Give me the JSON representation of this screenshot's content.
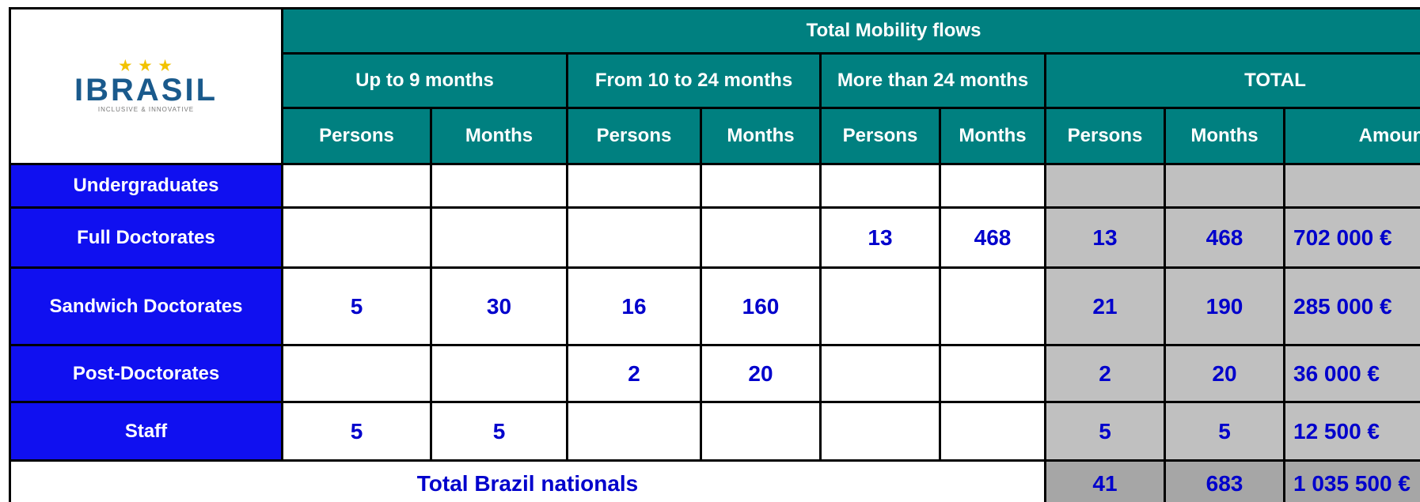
{
  "logo": {
    "brand": "IBRASIL",
    "tagline": "INCLUSIVE & INNOVATIVE"
  },
  "table": {
    "title": "Total Mobility flows",
    "groups": [
      "Up to 9 months",
      "From 10 to 24 months",
      "More than 24 months",
      "TOTAL"
    ],
    "columns": [
      "Persons",
      "Months",
      "Persons",
      "Months",
      "Persons",
      "Months",
      "Persons",
      "Months",
      "Amount"
    ],
    "rows": [
      {
        "label": "Undergraduates",
        "cells": [
          null,
          null,
          null,
          null,
          null,
          null,
          null,
          null,
          null
        ]
      },
      {
        "label": "Full Doctorates",
        "cells": [
          null,
          null,
          null,
          null,
          13,
          468,
          13,
          468,
          "702 000 €"
        ]
      },
      {
        "label": "Sandwich Doctorates",
        "cells": [
          5,
          30,
          16,
          160,
          null,
          null,
          21,
          190,
          "285 000 €"
        ]
      },
      {
        "label": "Post-Doctorates",
        "cells": [
          null,
          null,
          2,
          20,
          null,
          null,
          2,
          20,
          "36 000 €"
        ]
      },
      {
        "label": "Staff",
        "cells": [
          5,
          5,
          null,
          null,
          null,
          null,
          5,
          5,
          "12 500 €"
        ]
      }
    ],
    "total": {
      "label": "Total Brazil nationals",
      "cells": [
        41,
        683,
        "1 035 500 €"
      ]
    }
  }
}
